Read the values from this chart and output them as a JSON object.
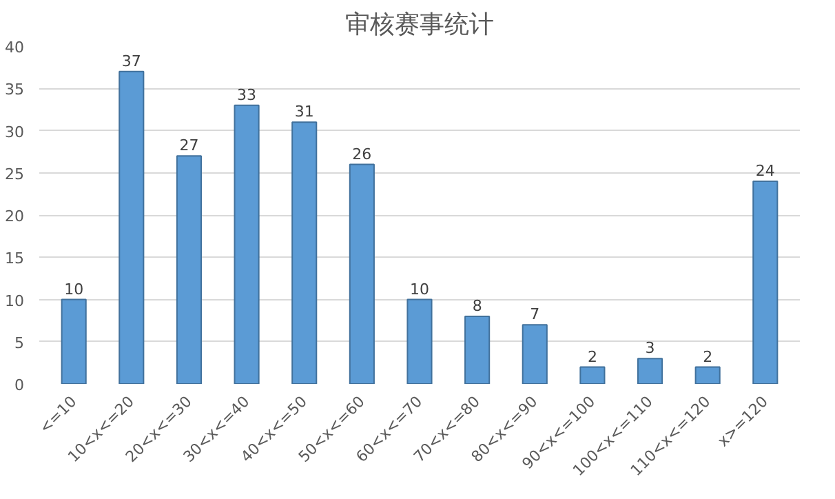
{
  "chart_data": {
    "type": "bar",
    "title": "审核赛事统计",
    "categories": [
      "<=10",
      "10<x<=20",
      "20<x<=30",
      "30<x<=40",
      "40<x<=50",
      "50<x<=60",
      "60<x<=70",
      "70<x<=80",
      "80<x<=90",
      "90<x<=100",
      "100<x<=110",
      "110<x<=120",
      "x>=120"
    ],
    "values": [
      10,
      37,
      27,
      33,
      31,
      26,
      10,
      8,
      7,
      2,
      3,
      2,
      24
    ],
    "color": "#5b9bd5",
    "ylim": [
      0,
      40
    ],
    "yticks": [
      0,
      5,
      10,
      15,
      20,
      25,
      30,
      35,
      40
    ],
    "grid": "y",
    "data_labels": true
  }
}
